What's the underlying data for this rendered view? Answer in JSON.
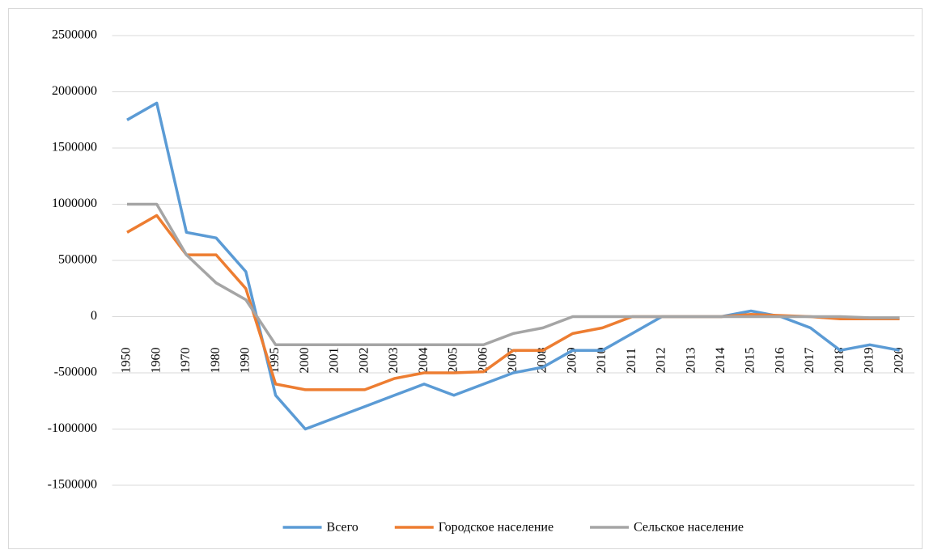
{
  "chart_data": {
    "type": "line",
    "categories": [
      "1950",
      "1960",
      "1970",
      "1980",
      "1990",
      "1995",
      "2000",
      "2001",
      "2002",
      "2003",
      "2004",
      "2005",
      "2006",
      "2007",
      "2008",
      "2009",
      "2010",
      "2011",
      "2012",
      "2013",
      "2014",
      "2015",
      "2016",
      "2017",
      "2018",
      "2019",
      "2020"
    ],
    "series": [
      {
        "name": "Всего",
        "color": "#5b9bd5",
        "values": [
          1750000,
          1900000,
          750000,
          700000,
          400000,
          -700000,
          -1000000,
          -900000,
          -800000,
          -700000,
          -600000,
          -700000,
          -600000,
          -500000,
          -450000,
          -300000,
          -300000,
          -150000,
          0,
          0,
          0,
          50000,
          0,
          -100000,
          -300000,
          -250000,
          -300000
        ]
      },
      {
        "name": "Городское население",
        "color": "#ed7d31",
        "values": [
          750000,
          900000,
          550000,
          550000,
          250000,
          -600000,
          -650000,
          -650000,
          -650000,
          -550000,
          -500000,
          -500000,
          -490000,
          -300000,
          -300000,
          -150000,
          -100000,
          0,
          0,
          0,
          0,
          20000,
          10000,
          0,
          -20000,
          -20000,
          -20000
        ]
      },
      {
        "name": "Сельское население",
        "color": "#a5a5a5",
        "values": [
          1000000,
          1000000,
          550000,
          300000,
          150000,
          -250000,
          -250000,
          -250000,
          -250000,
          -250000,
          -250000,
          -250000,
          -250000,
          -150000,
          -100000,
          0,
          0,
          0,
          0,
          0,
          0,
          0,
          0,
          0,
          0,
          -10000,
          -10000
        ]
      }
    ],
    "ylim": [
      -1500000,
      2500000
    ],
    "yticks": [
      -1500000,
      -1000000,
      -500000,
      0,
      500000,
      1000000,
      1500000,
      2000000,
      2500000
    ],
    "grid": true,
    "legend": "bottom"
  }
}
